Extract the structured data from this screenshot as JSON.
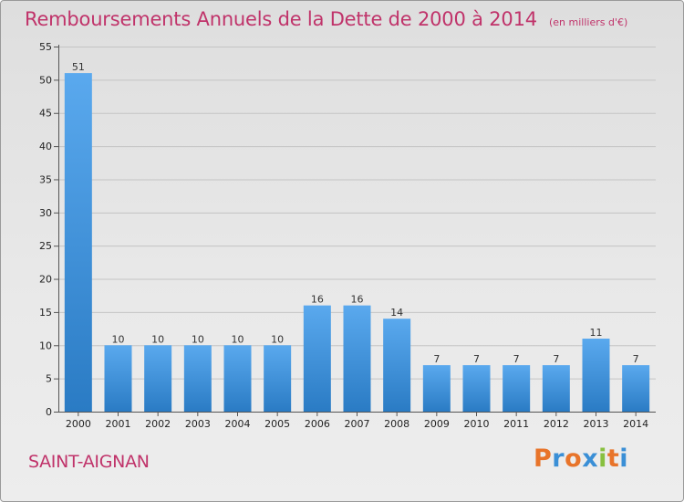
{
  "chart_data": {
    "type": "bar",
    "title": "Remboursements Annuels de la Dette de 2000 à 2014",
    "unit": "(en milliers d'€)",
    "categories": [
      "2000",
      "2001",
      "2002",
      "2003",
      "2004",
      "2005",
      "2006",
      "2007",
      "2008",
      "2009",
      "2010",
      "2011",
      "2012",
      "2013",
      "2014"
    ],
    "values": [
      51,
      10,
      10,
      10,
      10,
      10,
      16,
      16,
      14,
      7,
      7,
      7,
      7,
      11,
      7
    ],
    "ylim": [
      0,
      55
    ],
    "yticks": [
      0,
      5,
      10,
      15,
      20,
      25,
      30,
      35,
      40,
      45,
      50,
      55
    ],
    "grid": true,
    "bar_color": "#3a8fd6",
    "data_labels": true
  },
  "footer": {
    "city": "SAINT-AIGNAN",
    "brand": "Proxiti",
    "brand_colors": [
      "#e8742a",
      "#3a8fd6",
      "#e8742a",
      "#3a8fd6",
      "#88c040",
      "#e8742a",
      "#3a8fd6"
    ]
  }
}
